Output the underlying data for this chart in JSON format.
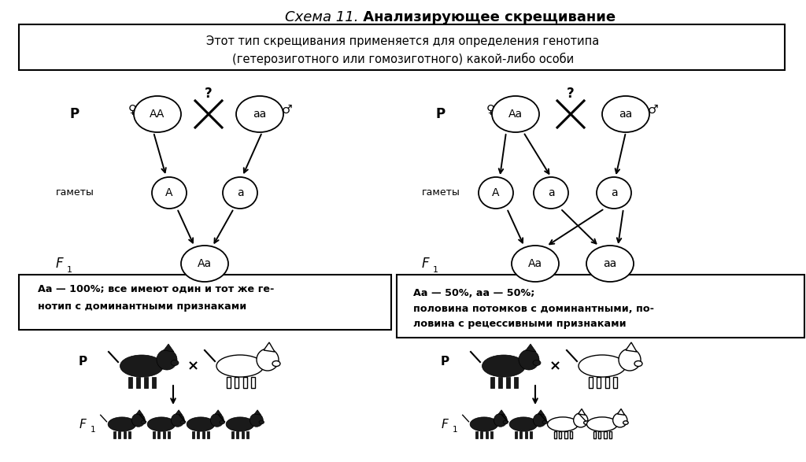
{
  "title_italic": "Схема 11.",
  "title_bold": " Анализирующее скрещивание",
  "subtitle_line1": "Этот тип скрещивания применяется для определения генотипа",
  "subtitle_line2": "(гетерозиготного или гомозиготного) какой-либо особи",
  "bg_color": "#ffffff",
  "left_P_female": "AA",
  "left_P_male": "aa",
  "left_gamete_left": "A",
  "left_gamete_right": "a",
  "left_F1": "Аа",
  "right_P_female": "Аа",
  "right_P_male": "aa",
  "right_gamete_A": "A",
  "right_gamete_a1": "a",
  "right_gamete_a2": "a",
  "right_F1_left": "Аа",
  "right_F1_right": "аа",
  "left_box_line1": "Аа — 100%; все имеют один и тот же ге-",
  "left_box_line2": "нотип с доминантными признаками",
  "right_box_line1": "Аа — 50%, аа — 50%;",
  "right_box_line2": "половина потомков с доминантными, по-",
  "right_box_line3": "ловина с рецессивными признаками",
  "label_P": "P",
  "label_gamety": "гаметы",
  "label_F1": "F",
  "female_symbol": "♀",
  "male_symbol": "♂",
  "question_mark": "?"
}
